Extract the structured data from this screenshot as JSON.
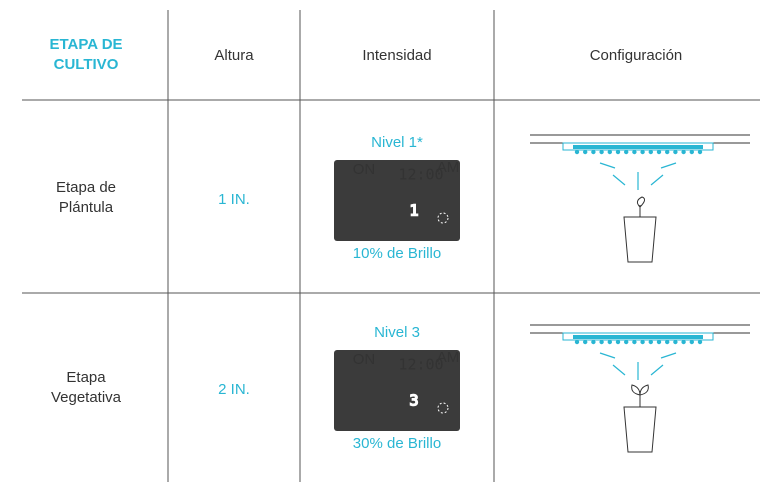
{
  "header": {
    "stage": "ETAPA DE CULTIVO",
    "height": "Altura",
    "intensity": "Intensidad",
    "setup": "Configuración"
  },
  "rows": [
    {
      "stage": [
        "Etapa de",
        "Plántula"
      ],
      "height": "1 IN.",
      "level": "Nivel 1*",
      "display": {
        "power": "ON",
        "time": "12:00",
        "period": "AM",
        "digit": "1"
      },
      "brightness": "10% de Brillo"
    },
    {
      "stage": [
        "Etapa",
        "Vegetativa"
      ],
      "height": "2 IN.",
      "level": "Nivel 3",
      "display": {
        "power": "ON",
        "time": "12:00",
        "period": "AM",
        "digit": "3"
      },
      "brightness": "30% de Brillo"
    }
  ]
}
